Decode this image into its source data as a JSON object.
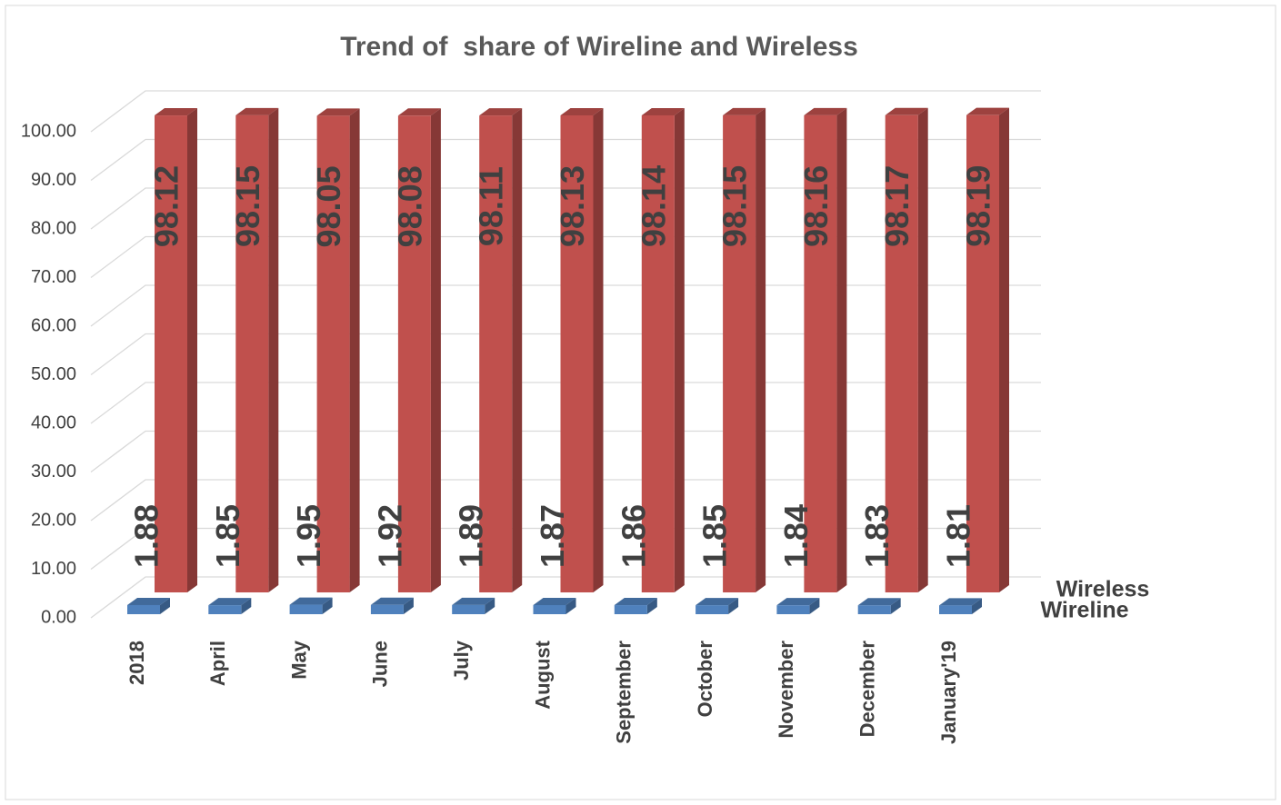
{
  "chart_data": {
    "type": "bar3d",
    "title": "Trend of  share of Wireline and Wireless",
    "categories": [
      "2018",
      "April",
      "May",
      "June",
      "July",
      "August",
      "September",
      "October",
      "November",
      "December",
      "January'19"
    ],
    "series": [
      {
        "name": "Wireline",
        "color": "#4f81bd",
        "values": [
          1.88,
          1.85,
          1.95,
          1.92,
          1.89,
          1.87,
          1.86,
          1.85,
          1.84,
          1.83,
          1.81
        ]
      },
      {
        "name": "Wireless",
        "color": "#c0504d",
        "values": [
          98.12,
          98.15,
          98.05,
          98.08,
          98.11,
          98.13,
          98.14,
          98.15,
          98.16,
          98.17,
          98.19
        ]
      }
    ],
    "ylim": [
      0,
      100
    ],
    "yticks": [
      {
        "value": 0,
        "label": "0.00"
      },
      {
        "value": 10,
        "label": "10.00"
      },
      {
        "value": 20,
        "label": "20.00"
      },
      {
        "value": 30,
        "label": "30.00"
      },
      {
        "value": 40,
        "label": "40.00"
      },
      {
        "value": 50,
        "label": "50.00"
      },
      {
        "value": 60,
        "label": "60.00"
      },
      {
        "value": 70,
        "label": "70.00"
      },
      {
        "value": 80,
        "label": "80.00"
      },
      {
        "value": 90,
        "label": "90.00"
      },
      {
        "value": 100,
        "label": "100.00"
      }
    ],
    "grid": true
  }
}
